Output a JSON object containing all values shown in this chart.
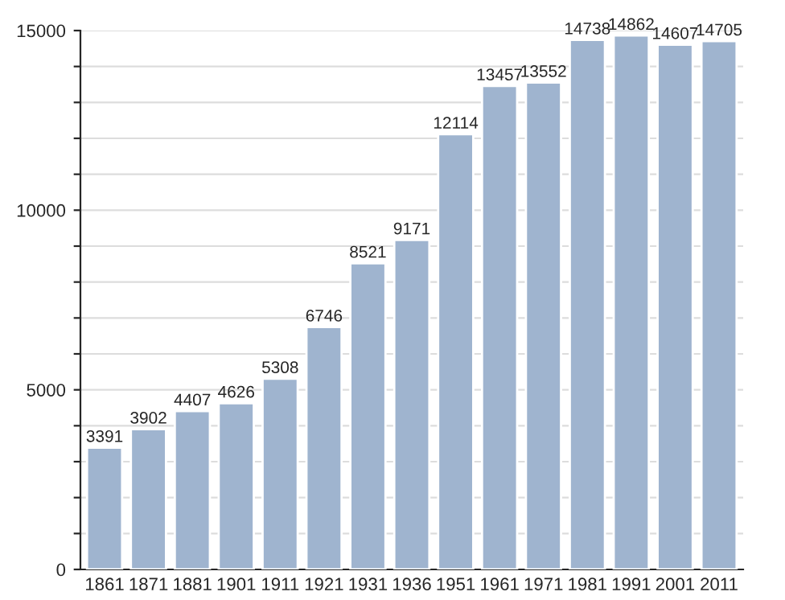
{
  "chart_data": {
    "type": "bar",
    "categories": [
      "1861",
      "1871",
      "1881",
      "1901",
      "1911",
      "1921",
      "1931",
      "1936",
      "1951",
      "1961",
      "1971",
      "1981",
      "1991",
      "2001",
      "2011"
    ],
    "values": [
      3391,
      3902,
      4407,
      4626,
      5308,
      6746,
      8521,
      9171,
      12114,
      13457,
      13552,
      14738,
      14862,
      14607,
      14705
    ],
    "color": "#9fb4cf",
    "ylim": [
      0,
      15000
    ],
    "yticks": [
      0,
      {
        "value": 1000,
        "label": null
      },
      {
        "value": 2000,
        "label": null
      },
      {
        "value": 3000,
        "label": null
      },
      {
        "value": 4000,
        "label": null
      },
      5000,
      {
        "value": 6000,
        "label": null
      },
      {
        "value": 7000,
        "label": null
      },
      {
        "value": 8000,
        "label": null
      },
      {
        "value": 9000,
        "label": null
      },
      10000,
      {
        "value": 11000,
        "label": null
      },
      {
        "value": 12000,
        "label": null
      },
      {
        "value": 13000,
        "label": null
      },
      {
        "value": 14000,
        "label": null
      },
      15000
    ],
    "grid": "y",
    "data_labels": true
  }
}
